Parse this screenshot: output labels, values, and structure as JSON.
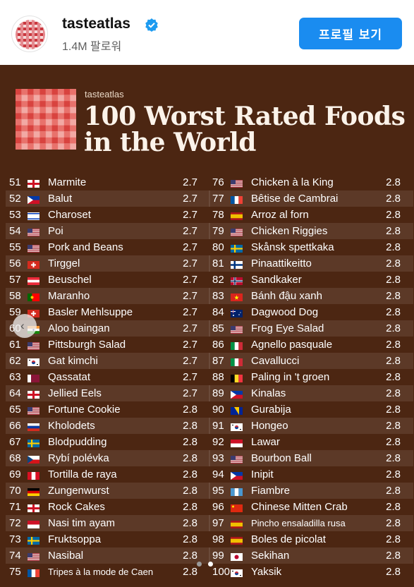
{
  "account": {
    "name": "tasteatlas",
    "followers": "1.4M 팔로워",
    "verified_icon": "verified-badge-icon"
  },
  "profile_button": "프로필 보기",
  "poster": {
    "brand": "tasteatlas",
    "title_line1": "100 Worst Rated Foods",
    "title_line2": "in the World"
  },
  "left_column": [
    {
      "rank": "51",
      "flag": "england",
      "name": "Marmite",
      "score": "2.7"
    },
    {
      "rank": "52",
      "flag": "philippines",
      "name": "Balut",
      "score": "2.7"
    },
    {
      "rank": "53",
      "flag": "israel",
      "name": "Charoset",
      "score": "2.7"
    },
    {
      "rank": "54",
      "flag": "usa",
      "name": "Poi",
      "score": "2.7"
    },
    {
      "rank": "55",
      "flag": "usa",
      "name": "Pork and Beans",
      "score": "2.7"
    },
    {
      "rank": "56",
      "flag": "switzerland",
      "name": "Tirggel",
      "score": "2.7"
    },
    {
      "rank": "57",
      "flag": "austria",
      "name": "Beuschel",
      "score": "2.7"
    },
    {
      "rank": "58",
      "flag": "portugal",
      "name": "Maranho",
      "score": "2.7"
    },
    {
      "rank": "59",
      "flag": "switzerland",
      "name": "Basler Mehlsuppe",
      "score": "2.7"
    },
    {
      "rank": "60",
      "flag": "india",
      "name": "Aloo baingan",
      "score": "2.7"
    },
    {
      "rank": "61",
      "flag": "usa",
      "name": "Pittsburgh Salad",
      "score": "2.7"
    },
    {
      "rank": "62",
      "flag": "south-korea",
      "name": "Gat kimchi",
      "score": "2.7"
    },
    {
      "rank": "63",
      "flag": "qatar",
      "name": "Qassatat",
      "score": "2.7"
    },
    {
      "rank": "64",
      "flag": "england",
      "name": "Jellied Eels",
      "score": "2.7"
    },
    {
      "rank": "65",
      "flag": "usa",
      "name": "Fortune Cookie",
      "score": "2.8"
    },
    {
      "rank": "66",
      "flag": "russia",
      "name": "Kholodets",
      "score": "2.8"
    },
    {
      "rank": "67",
      "flag": "sweden",
      "name": "Blodpudding",
      "score": "2.8"
    },
    {
      "rank": "68",
      "flag": "czechia",
      "name": "Rybí polévka",
      "score": "2.8"
    },
    {
      "rank": "69",
      "flag": "peru",
      "name": "Tortilla de raya",
      "score": "2.8"
    },
    {
      "rank": "70",
      "flag": "germany",
      "name": "Zungenwurst",
      "score": "2.8"
    },
    {
      "rank": "71",
      "flag": "england",
      "name": "Rock Cakes",
      "score": "2.8"
    },
    {
      "rank": "72",
      "flag": "indonesia",
      "name": "Nasi tim ayam",
      "score": "2.8"
    },
    {
      "rank": "73",
      "flag": "sweden",
      "name": "Fruktsoppa",
      "score": "2.8"
    },
    {
      "rank": "74",
      "flag": "usa",
      "name": "Nasibal",
      "score": "2.8"
    },
    {
      "rank": "75",
      "flag": "france",
      "name": "Tripes à la mode de Caen",
      "score": "2.8"
    }
  ],
  "right_column": [
    {
      "rank": "76",
      "flag": "usa",
      "name": "Chicken à la King",
      "score": "2.8"
    },
    {
      "rank": "77",
      "flag": "france",
      "name": "Bêtise de Cambrai",
      "score": "2.8"
    },
    {
      "rank": "78",
      "flag": "spain",
      "name": "Arroz al forn",
      "score": "2.8"
    },
    {
      "rank": "79",
      "flag": "usa",
      "name": "Chicken Riggies",
      "score": "2.8"
    },
    {
      "rank": "80",
      "flag": "sweden",
      "name": "Skånsk spettkaka",
      "score": "2.8"
    },
    {
      "rank": "81",
      "flag": "finland",
      "name": "Pinaattikeitto",
      "score": "2.8"
    },
    {
      "rank": "82",
      "flag": "norway",
      "name": "Sandkaker",
      "score": "2.8"
    },
    {
      "rank": "83",
      "flag": "vietnam",
      "name": "Bánh đậu xanh",
      "score": "2.8"
    },
    {
      "rank": "84",
      "flag": "australia",
      "name": "Dagwood Dog",
      "score": "2.8"
    },
    {
      "rank": "85",
      "flag": "usa",
      "name": "Frog Eye Salad",
      "score": "2.8"
    },
    {
      "rank": "86",
      "flag": "italy",
      "name": "Agnello pasquale",
      "score": "2.8"
    },
    {
      "rank": "87",
      "flag": "italy",
      "name": "Cavallucci",
      "score": "2.8"
    },
    {
      "rank": "88",
      "flag": "belgium",
      "name": "Paling in 't groen",
      "score": "2.8"
    },
    {
      "rank": "89",
      "flag": "philippines",
      "name": "Kinalas",
      "score": "2.8"
    },
    {
      "rank": "90",
      "flag": "bosnia",
      "name": "Gurabija",
      "score": "2.8"
    },
    {
      "rank": "91",
      "flag": "south-korea",
      "name": "Hongeo",
      "score": "2.8"
    },
    {
      "rank": "92",
      "flag": "indonesia",
      "name": "Lawar",
      "score": "2.8"
    },
    {
      "rank": "93",
      "flag": "usa",
      "name": "Bourbon Ball",
      "score": "2.8"
    },
    {
      "rank": "94",
      "flag": "philippines",
      "name": "Inipit",
      "score": "2.8"
    },
    {
      "rank": "95",
      "flag": "guatemala",
      "name": "Fiambre",
      "score": "2.8"
    },
    {
      "rank": "96",
      "flag": "china",
      "name": "Chinese Mitten Crab",
      "score": "2.8"
    },
    {
      "rank": "97",
      "flag": "spain",
      "name": "Pincho ensaladilla rusa",
      "score": "2.8"
    },
    {
      "rank": "98",
      "flag": "spain",
      "name": "Boles de picolat",
      "score": "2.8"
    },
    {
      "rank": "99",
      "flag": "japan",
      "name": "Sekihan",
      "score": "2.8"
    },
    {
      "rank": "100",
      "flag": "south-korea",
      "name": "Yaksik",
      "score": "2.8"
    }
  ],
  "icons": {
    "carousel": "chevron-left-icon",
    "logo": "checkered-logo-icon"
  },
  "colors": {
    "poster_bg": "#4c2612",
    "button": "#1a8cf0",
    "logo_red": "#d23b3b"
  }
}
